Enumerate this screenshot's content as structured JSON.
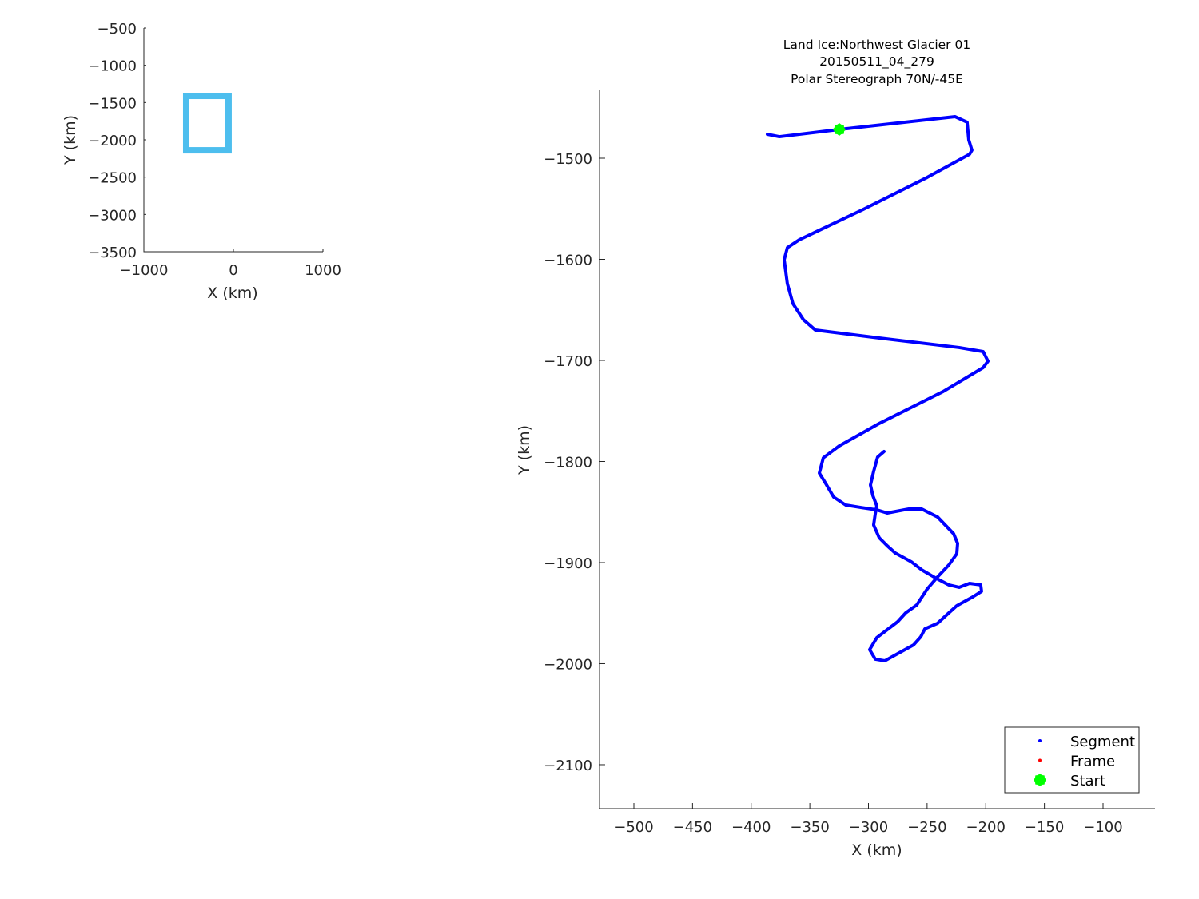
{
  "chart_data": [
    {
      "type": "line",
      "panel": "overview-inset",
      "xlabel": "X (km)",
      "ylabel": "Y (km)",
      "xlim": [
        -1000,
        1000
      ],
      "ylim": [
        -3500,
        -500
      ],
      "xticks": [
        -1000,
        0,
        1000
      ],
      "xtick_labels": [
        "−1000",
        "0",
        "1000"
      ],
      "yticks": [
        -500,
        -1000,
        -1500,
        -2000,
        -2500,
        -3000,
        -3500
      ],
      "ytick_labels": [
        "−500",
        "−1000",
        "−1500",
        "−2000",
        "−2500",
        "−3000",
        "−3500"
      ],
      "grid": false,
      "color": "#4DBEEE",
      "box": {
        "x": [
          -527,
          -54
        ],
        "y": [
          -1411,
          -2140
        ]
      }
    },
    {
      "type": "line",
      "panel": "main",
      "title": [
        "Land Ice:Northwest Glacier 01",
        "20150511_04_279",
        "Polar Stereograph 70N/-45E"
      ],
      "xlabel": "X (km)",
      "ylabel": "Y (km)",
      "xlim": [
        -529.3,
        -55.7
      ],
      "ylim": [
        -2143.5,
        -1432.8
      ],
      "xticks": [
        -500,
        -450,
        -400,
        -350,
        -300,
        -250,
        -200,
        -150,
        -100
      ],
      "xtick_labels": [
        "−500",
        "−450",
        "−400",
        "−350",
        "−300",
        "−250",
        "−200",
        "−150",
        "−100"
      ],
      "yticks": [
        -1500,
        -1600,
        -1700,
        -1800,
        -1900,
        -2000,
        -2100
      ],
      "ytick_labels": [
        "−1500",
        "−1600",
        "−1700",
        "−1800",
        "−1900",
        "−2000",
        "−2100"
      ],
      "grid": false,
      "legend_placement": "bottom-right",
      "legend": [
        {
          "name": "Segment",
          "color": "#0000FF",
          "marker": "dot"
        },
        {
          "name": "Frame",
          "color": "#FF0000",
          "marker": "dot"
        },
        {
          "name": "Start",
          "color": "#00FF00",
          "marker": "star"
        }
      ],
      "segment": {
        "color": "#0000FF",
        "x": [
          -386.2,
          -376.0,
          -324.9,
          -226.1,
          -215.9,
          -214.5,
          -211.8,
          -213.8,
          -250.0,
          -304.4,
          -358.9,
          -369.2,
          -371.9,
          -369.2,
          -364.4,
          -355.5,
          -345.3,
          -290.8,
          -222.7,
          -202.2,
          -198.1,
          -202.2,
          -236.3,
          -290.8,
          -324.9,
          -338.5,
          -341.9,
          -336.5,
          -329.7,
          -319.4,
          -306.5,
          -292.9,
          -284.0,
          -265.6,
          -254.7,
          -241.1,
          -227.4,
          -224.0,
          -224.7,
          -231.5,
          -241.1,
          -249.9,
          -258.8,
          -268.3,
          -275.1,
          -284.0,
          -292.9,
          -299.0,
          -294.2,
          -286.0,
          -275.1,
          -261.5,
          -255.4,
          -251.9,
          -241.1,
          -231.5,
          -224.7,
          -211.1,
          -203.6,
          -204.3,
          -213.8,
          -222.7,
          -231.5,
          -243.1,
          -254.7,
          -263.5,
          -277.2,
          -284.0,
          -290.8,
          -295.6,
          -294.2,
          -292.9,
          -296.3,
          -298.3,
          -295.6,
          -292.2,
          -286.7
        ],
        "y": [
          -1476.3,
          -1478.7,
          -1471.5,
          -1458.9,
          -1464.4,
          -1481.8,
          -1492.1,
          -1496.0,
          -1519.0,
          -1550.6,
          -1580.6,
          -1588.5,
          -1600.4,
          -1624.1,
          -1643.9,
          -1659.7,
          -1670.0,
          -1677.9,
          -1687.3,
          -1691.3,
          -1700.8,
          -1707.1,
          -1730.8,
          -1762.4,
          -1784.6,
          -1796.4,
          -1811.5,
          -1821.7,
          -1835.2,
          -1843.1,
          -1845.5,
          -1847.9,
          -1851.0,
          -1847.0,
          -1847.0,
          -1854.9,
          -1871.5,
          -1881.0,
          -1891.3,
          -1902.4,
          -1914.2,
          -1926.1,
          -1941.9,
          -1949.8,
          -1958.5,
          -1966.4,
          -1974.3,
          -1986.2,
          -1995.6,
          -1997.2,
          -1990.1,
          -1981.4,
          -1973.5,
          -1965.6,
          -1960.1,
          -1949.8,
          -1942.7,
          -1934.0,
          -1928.5,
          -1922.1,
          -1920.6,
          -1924.5,
          -1922.1,
          -1915.0,
          -1907.1,
          -1899.2,
          -1890.5,
          -1883.4,
          -1875.5,
          -1862.8,
          -1851.8,
          -1843.9,
          -1833.6,
          -1823.3,
          -1809.9,
          -1795.7,
          -1790.1
        ]
      },
      "frame": {
        "color": "#FF0000",
        "x": [
          -327.5
        ],
        "y": [
          -1471.8
        ]
      },
      "start": {
        "color": "#00FF00",
        "x": -324.9,
        "y": -1471.5
      }
    }
  ]
}
